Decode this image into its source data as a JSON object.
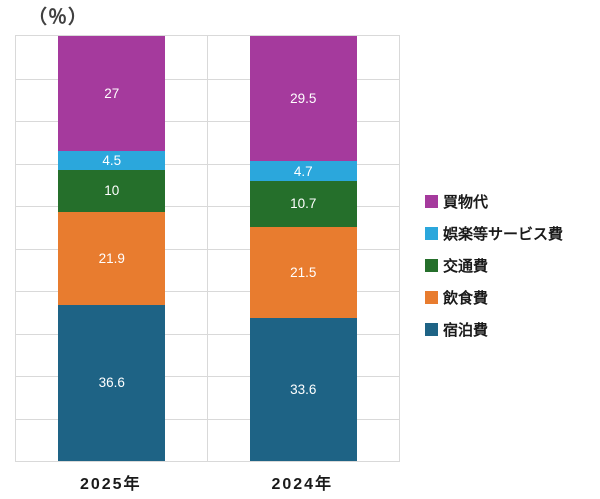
{
  "title": "（％）",
  "chart_data": {
    "type": "bar",
    "stacked": true,
    "unit": "%",
    "title": "（％）",
    "categories": [
      "2025年",
      "2024年"
    ],
    "series": [
      {
        "name": "宿泊費",
        "color": "#1E6385",
        "values": [
          36.6,
          33.6
        ],
        "labels": [
          "36.6",
          "33.6"
        ]
      },
      {
        "name": "飲食費",
        "color": "#E87C2F",
        "values": [
          21.9,
          21.5
        ],
        "labels": [
          "21.9",
          "21.5"
        ]
      },
      {
        "name": "交通費",
        "color": "#256F2B",
        "values": [
          10,
          10.7
        ],
        "labels": [
          "10",
          "10.7"
        ]
      },
      {
        "name": "娯楽等サービス費",
        "color": "#2BA7DC",
        "values": [
          4.5,
          4.7
        ],
        "labels": [
          "4.5",
          "4.7"
        ]
      },
      {
        "name": "買物代",
        "color": "#A53A9D",
        "values": [
          27,
          29.5
        ],
        "labels": [
          "27",
          "29.5"
        ]
      }
    ],
    "ylim": [
      0,
      100
    ],
    "gridline_step": 10,
    "grid_color": "#D9D9D9",
    "value_label_color": "#FFFFFF",
    "legend": {
      "position": "right",
      "items": [
        {
          "label": "買物代",
          "color": "#A53A9D"
        },
        {
          "label": "娯楽等サービス費",
          "color": "#2BA7DC"
        },
        {
          "label": "交通費",
          "color": "#256F2B"
        },
        {
          "label": "飲食費",
          "color": "#E87C2F"
        },
        {
          "label": "宿泊費",
          "color": "#1E6385"
        }
      ]
    }
  }
}
